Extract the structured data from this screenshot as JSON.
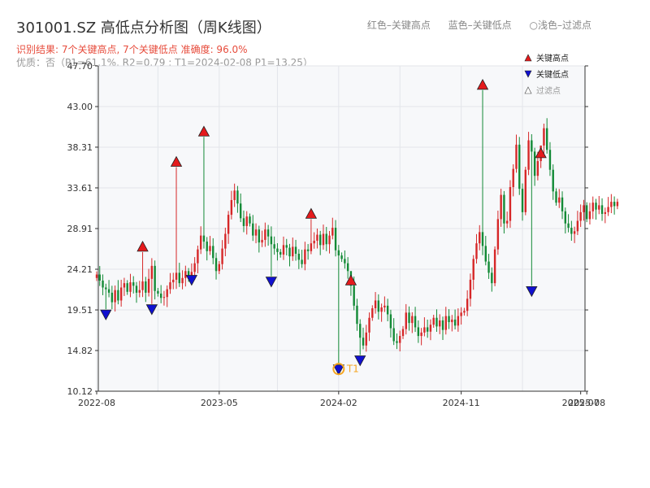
{
  "title": "301001.SZ 高低点分析图（周K线图）",
  "subtitle": "识别结果: 7个关键高点, 7个关键低点  准确度: 96.0%",
  "subtitle2": "优质：否（P1=61.1%, R2=0.79 ; T1=2024-02-08 P1=13.25）",
  "top_legend": {
    "red": "红色–关键高点",
    "blue": "蓝色–关键低点",
    "light": "○浅色–过滤点"
  },
  "colors": {
    "up": "#d62728",
    "down": "#138a36",
    "high": "#e41a1c",
    "low": "#1010d0",
    "t1": "#f5a623"
  },
  "chart_data": {
    "type": "candlestick",
    "title": "301001.SZ 高低点分析图（周K线图）",
    "ylim": [
      10.12,
      47.7
    ],
    "y_ticks": [
      10.12,
      14.82,
      19.51,
      24.21,
      28.91,
      33.61,
      38.31,
      43.0,
      47.7
    ],
    "y_tick_labels": [
      "10.12",
      "14.82",
      "19.51",
      "24.21",
      "28.91",
      "33.61",
      "38.31",
      "43.00",
      "47.70"
    ],
    "x_ticks": [
      {
        "label": "2022-08",
        "week": 0
      },
      {
        "label": "2023-05",
        "week": 40
      },
      {
        "label": "2024-02",
        "week": 79
      },
      {
        "label": "2024-11",
        "week": 119
      },
      {
        "label": "2025-07",
        "week": 158
      },
      {
        "label": "2025-08",
        "week": 160
      }
    ],
    "legend": [
      "关键高点",
      "关键低点",
      "过滤点"
    ],
    "legend_position": "top-right",
    "t1_label": "T1",
    "closes": [
      23.6,
      22.9,
      22.1,
      21.9,
      21.5,
      20.4,
      21.8,
      20.6,
      22.1,
      22.6,
      21.6,
      22.7,
      22.3,
      21.5,
      21.8,
      22.8,
      21.5,
      23.1,
      24.6,
      21.7,
      21.4,
      20.9,
      21.0,
      21.9,
      22.7,
      23.0,
      23.8,
      22.6,
      23.2,
      24.0,
      23.1,
      23.9,
      24.9,
      26.5,
      28.1,
      27.4,
      26.3,
      26.9,
      25.5,
      24.0,
      24.8,
      26.6,
      28.3,
      30.5,
      32.2,
      33.3,
      31.8,
      30.1,
      29.2,
      30.3,
      29.5,
      28.1,
      28.8,
      27.3,
      27.6,
      28.8,
      28.0,
      27.1,
      26.6,
      26.2,
      25.9,
      27.0,
      26.7,
      25.7,
      26.8,
      26.0,
      25.3,
      24.8,
      26.5,
      26.3,
      27.2,
      27.5,
      28.2,
      27.0,
      28.3,
      27.1,
      28.1,
      29.0,
      26.4,
      25.8,
      25.4,
      24.9,
      24.0,
      22.3,
      20.0,
      17.9,
      16.3,
      15.4,
      16.9,
      18.6,
      19.7,
      20.6,
      19.3,
      19.8,
      20.0,
      19.0,
      17.4,
      15.9,
      15.7,
      16.5,
      17.3,
      19.2,
      18.0,
      18.8,
      17.5,
      16.5,
      16.9,
      17.5,
      17.0,
      17.8,
      18.6,
      17.6,
      18.3,
      17.2,
      18.8,
      18.1,
      18.4,
      17.7,
      18.8,
      19.2,
      19.4,
      20.8,
      23.0,
      25.4,
      27.2,
      28.5,
      26.9,
      25.1,
      23.8,
      22.6,
      26.5,
      30.0,
      32.8,
      29.5,
      29.8,
      33.7,
      35.8,
      38.6,
      33.5,
      30.8,
      35.7,
      39.1,
      37.8,
      35.0,
      36.7,
      38.5,
      40.5,
      38.0,
      35.7,
      33.2,
      31.9,
      32.5,
      30.9,
      29.5,
      29.0,
      28.3,
      28.6,
      29.8,
      30.8,
      31.6,
      30.0,
      30.9,
      31.9,
      31.1,
      31.6,
      30.6,
      30.8,
      31.4,
      32.0,
      31.5,
      32.0
    ],
    "highs": [
      {
        "week": 15,
        "price": 26.2
      },
      {
        "week": 26,
        "price": 36.0
      },
      {
        "week": 35,
        "price": 39.5
      },
      {
        "week": 70,
        "price": 30.0
      },
      {
        "week": 83,
        "price": 22.3
      },
      {
        "week": 126,
        "price": 44.9
      },
      {
        "week": 145,
        "price": 37.0
      }
    ],
    "lows": [
      {
        "week": 3,
        "price": 19.6
      },
      {
        "week": 18,
        "price": 20.2
      },
      {
        "week": 31,
        "price": 23.6
      },
      {
        "week": 57,
        "price": 23.4
      },
      {
        "week": 79,
        "price": 13.25
      },
      {
        "week": 86,
        "price": 14.3
      },
      {
        "week": 142,
        "price": 22.3
      }
    ],
    "t1": {
      "week": 79,
      "price": 13.25
    }
  }
}
